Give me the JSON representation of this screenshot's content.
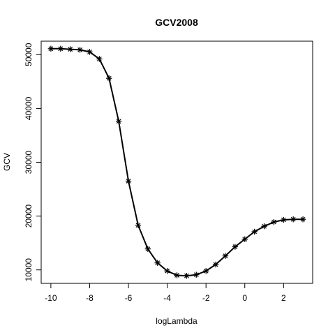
{
  "chart_data": {
    "type": "line",
    "title": "GCV2008",
    "xlabel": "logLambda",
    "ylabel": "GCV",
    "xlim": [
      -10.5,
      3.5
    ],
    "ylim": [
      7500,
      52500
    ],
    "xticks": [
      -10,
      -8,
      -6,
      -4,
      -2,
      0,
      2
    ],
    "xtick_labels": [
      "-10",
      "-8",
      "-6",
      "-4",
      "-2",
      "0",
      "2"
    ],
    "yticks": [
      10000,
      20000,
      30000,
      40000,
      50000
    ],
    "ytick_labels": [
      "10000",
      "20000",
      "30000",
      "40000",
      "50000"
    ],
    "grid": false,
    "marker": "asterisk",
    "series": [
      {
        "x": [
          -10,
          -9.5,
          -9,
          -8.5,
          -8,
          -7.5,
          -7,
          -6.5,
          -6,
          -5.5,
          -5,
          -4.5,
          -4,
          -3.5,
          -3,
          -2.5,
          -2,
          -1.5,
          -1,
          -0.5,
          0,
          0.5,
          1,
          1.5,
          2,
          2.5,
          3
        ],
        "y": [
          51100,
          51100,
          51000,
          50900,
          50500,
          49200,
          45600,
          37600,
          26500,
          18300,
          13900,
          11300,
          9800,
          9000,
          8900,
          9100,
          9800,
          11000,
          12600,
          14300,
          15700,
          17100,
          18100,
          18900,
          19300,
          19400,
          19400
        ]
      }
    ]
  }
}
